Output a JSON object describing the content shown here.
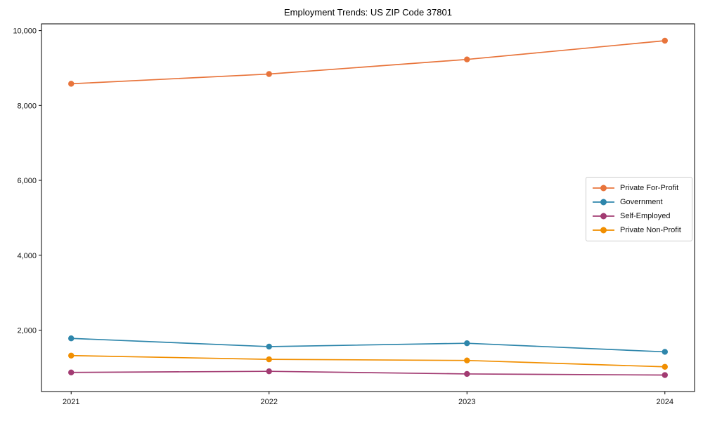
{
  "chart_data": {
    "type": "line",
    "title": "Employment Trends: US ZIP Code 37801",
    "xlabel": "",
    "ylabel": "",
    "x": [
      2021,
      2022,
      2023,
      2024
    ],
    "categories": [
      "2021",
      "2022",
      "2023",
      "2024"
    ],
    "series": [
      {
        "name": "Private For-Profit",
        "color": "#E8743B",
        "values": [
          8580,
          8840,
          9230,
          9730
        ]
      },
      {
        "name": "Government",
        "color": "#2E86AB",
        "values": [
          1780,
          1560,
          1650,
          1420
        ]
      },
      {
        "name": "Self-Employed",
        "color": "#A23B72",
        "values": [
          870,
          900,
          830,
          800
        ]
      },
      {
        "name": "Private Non-Profit",
        "color": "#F18F01",
        "values": [
          1320,
          1220,
          1190,
          1020
        ]
      }
    ],
    "yticks": [
      2000,
      4000,
      6000,
      8000,
      10000
    ],
    "ytick_labels": [
      "2,000",
      "4,000",
      "6,000",
      "8,000",
      "10,000"
    ],
    "ylim": [
      360,
      10180
    ],
    "xlim": [
      2020.85,
      2024.15
    ],
    "grid": false,
    "legend_position": "center-right",
    "marker": "circle",
    "axis_color": "#000000",
    "text_color": "#111111"
  }
}
